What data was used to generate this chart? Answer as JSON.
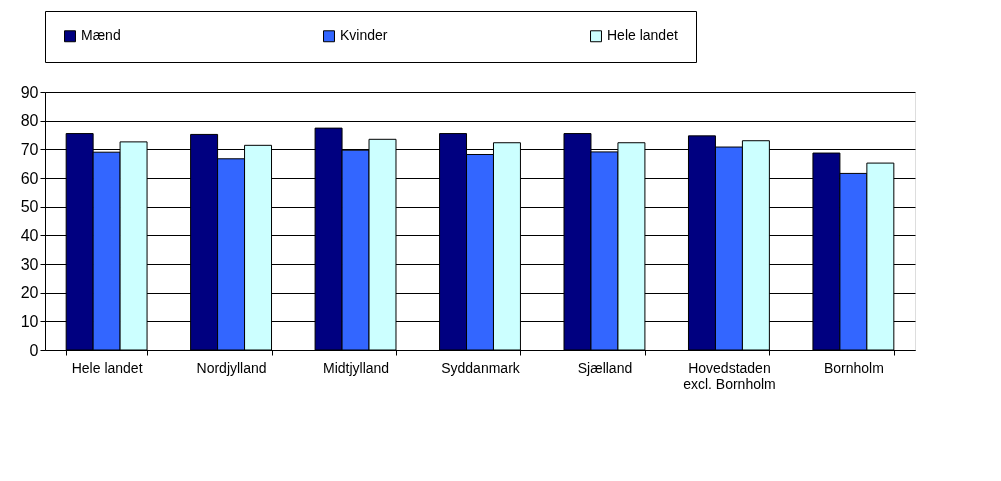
{
  "chart_data": {
    "type": "bar",
    "categories": [
      "Hele landet",
      "Nordjylland",
      "Midtjylland",
      "Syddanmark",
      "Sjælland",
      "Hovedstaden\nexcl. Bornholm",
      "Bornholm"
    ],
    "series": [
      {
        "name": "Mænd",
        "color": "#000080",
        "values": [
          75.5,
          75.2,
          77.4,
          75.5,
          75.5,
          74.7,
          68.7
        ]
      },
      {
        "name": "Kvinder",
        "color": "#3366ff",
        "values": [
          69.0,
          66.7,
          69.7,
          68.2,
          69.1,
          70.8,
          61.6
        ]
      },
      {
        "name": "Hele landet",
        "color": "#ccffff",
        "values": [
          72.6,
          71.4,
          73.5,
          72.3,
          72.3,
          73.0,
          65.2
        ]
      }
    ],
    "ylim": [
      0,
      90
    ],
    "yticks": [
      0,
      10,
      20,
      30,
      40,
      50,
      60,
      70,
      80,
      90
    ],
    "grid": "y",
    "legend": "top"
  }
}
